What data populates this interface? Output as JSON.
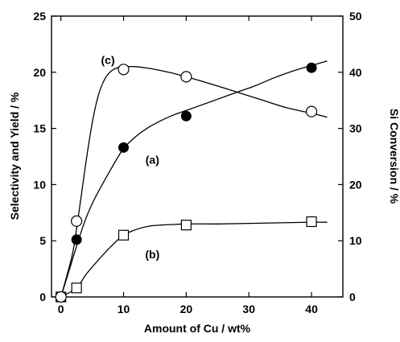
{
  "chart_data": {
    "type": "scatter",
    "title": "",
    "xlabel": "Amount of Cu / wt%",
    "ylabel_left": "Selectivity and Yield / %",
    "ylabel_right": "Si Conversion / %",
    "xlim": [
      -1.5,
      45
    ],
    "ylim_left": [
      0,
      25
    ],
    "ylim_right": [
      0,
      50
    ],
    "x_ticks": [
      0,
      10,
      20,
      30,
      40
    ],
    "x_tick_labels": [
      "0",
      "10",
      "20",
      "30",
      "40"
    ],
    "y_left_ticks": [
      0,
      5,
      10,
      15,
      20,
      25
    ],
    "y_left_tick_labels": [
      "0",
      "5",
      "10",
      "15",
      "20",
      "25"
    ],
    "y_right_ticks": [
      0,
      10,
      20,
      30,
      40,
      50
    ],
    "y_right_tick_labels": [
      "0",
      "10",
      "20",
      "30",
      "40",
      "50"
    ],
    "grid": false,
    "legend": "none",
    "series": [
      {
        "label": "(a)",
        "marker": "filled-circle",
        "axis": "left",
        "x": [
          0,
          2.5,
          10,
          20,
          40
        ],
        "y": [
          0,
          5.1,
          13.3,
          16.1,
          20.4
        ],
        "curve_x": [
          0,
          1,
          2,
          3,
          4,
          5,
          6,
          8,
          10,
          12,
          14,
          16,
          18,
          20,
          22,
          25,
          28,
          31,
          34,
          37,
          40,
          42.5
        ],
        "curve_y": [
          0,
          1.8,
          3.6,
          5.4,
          7.0,
          8.3,
          9.4,
          11.4,
          13.2,
          14.3,
          15.1,
          15.7,
          16.2,
          16.6,
          17.0,
          17.6,
          18.2,
          18.8,
          19.5,
          20.1,
          20.6,
          21.0
        ]
      },
      {
        "label": "(b)",
        "marker": "open-square",
        "axis": "left",
        "x": [
          0,
          2.5,
          10,
          20,
          40
        ],
        "y": [
          0,
          0.8,
          5.5,
          6.4,
          6.7
        ],
        "curve_x": [
          0,
          2.5,
          4,
          6,
          8,
          10,
          12,
          14,
          16,
          18,
          20,
          25,
          30,
          35,
          40,
          42.5
        ],
        "curve_y": [
          0,
          0.8,
          2.0,
          3.3,
          4.5,
          5.5,
          6.0,
          6.3,
          6.4,
          6.45,
          6.5,
          6.5,
          6.55,
          6.6,
          6.65,
          6.65
        ]
      },
      {
        "label": "(c)",
        "marker": "open-circle",
        "axis": "right",
        "x": [
          0,
          2.5,
          10,
          20,
          40
        ],
        "y": [
          0,
          13.5,
          40.5,
          39.2,
          33.0
        ],
        "curve_x": [
          0,
          1,
          2,
          3,
          4,
          5,
          6,
          7,
          8,
          9,
          10,
          12,
          14,
          16,
          18,
          20,
          24,
          28,
          32,
          36,
          40,
          42.5
        ],
        "curve_y": [
          0,
          4,
          8.5,
          16,
          24,
          31,
          36,
          38.8,
          40.2,
          40.8,
          41.0,
          41.0,
          40.7,
          40.3,
          39.8,
          39.2,
          37.9,
          36.5,
          35.1,
          33.7,
          32.7,
          32.0
        ]
      }
    ],
    "annotations": [
      {
        "text": "(a)",
        "x": 14.6,
        "y": 12.2,
        "axis": "left"
      },
      {
        "text": "(b)",
        "x": 14.6,
        "y": 3.8,
        "axis": "left"
      },
      {
        "text": "(c)",
        "x": 7.5,
        "y": 42.2,
        "axis": "right"
      }
    ]
  }
}
